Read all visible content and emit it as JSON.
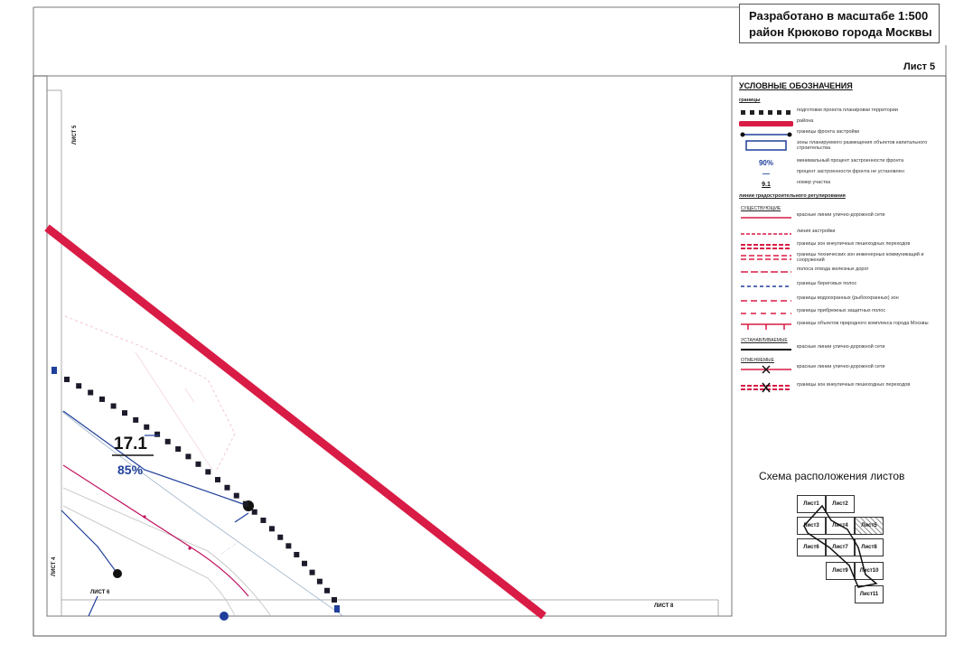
{
  "title_block": {
    "line1": "Разработано в масштабе 1:500",
    "line2": "район Крюково города Москвы"
  },
  "sheet_label": "Лист 5",
  "legend": {
    "title": "УСЛОВНЫЕ ОБОЗНАЧЕНИЯ",
    "section_boundaries": "границы",
    "items": [
      {
        "text": "подготовки проекта планировки территории"
      },
      {
        "text": "района"
      },
      {
        "text": "границы фронта застройки"
      },
      {
        "text": "зоны планируемого размещения объектов капитального строительства"
      },
      {
        "symbol": "90%",
        "text": "минимальный процент застроенности фронта"
      },
      {
        "symbol": "—",
        "text": "процент застроенности фронта не установлен"
      },
      {
        "symbol": "9.1",
        "text": "номер участка"
      }
    ],
    "section_regulation": "линии градостроительного регулирования",
    "sub_existing": "СУЩЕСТВУЮЩИЕ",
    "reg_items": [
      {
        "text": "красные линии улично-дорожной сети"
      },
      {
        "text": "линия застройки"
      },
      {
        "text": "границы зон внеуличных пешеходных переходов"
      },
      {
        "text": "границы технических зон инженерных коммуникаций и сооружений"
      },
      {
        "text": "полоса отвода железных дорог"
      },
      {
        "text": "границы береговых полос"
      },
      {
        "text": "границы водоохранных (рыбоохранных) зон"
      },
      {
        "text": "границы прибрежных защитных полос"
      },
      {
        "text": "границы объектов природного комплекса города Москвы"
      }
    ],
    "sub_established": "УСТАНАВЛИВАЕМЫЕ",
    "est_items": [
      {
        "text": "красные линии улично-дорожной сети"
      }
    ],
    "sub_cancelled": "ОТМЕНЯЕМЫЕ",
    "cancel_items": [
      {
        "text": "красные линии улично-дорожной сети"
      },
      {
        "text": "границы зон внеуличных пешеходных переходов"
      }
    ]
  },
  "schema": {
    "title": "Схема расположения листов",
    "cells": [
      "Лист1",
      "Лист2",
      "Лист3",
      "Лист4",
      "Лист5",
      "Лист6",
      "Лист7",
      "Лист8",
      "Лист9",
      "Лист10",
      "Лист11"
    ]
  },
  "map": {
    "parcel_number": "17.1",
    "parcel_percent": "85%",
    "label_top_left": "ЛИСТ 5",
    "label_left": "ЛИСТ 4",
    "label_bottom_left": "ЛИСТ 6",
    "label_bottom_right": "ЛИСТ 8"
  },
  "colors": {
    "red_line": "#d81c45",
    "blue_line": "#1f3f9a",
    "frame": "#444444",
    "magenta": "#c0135f"
  }
}
